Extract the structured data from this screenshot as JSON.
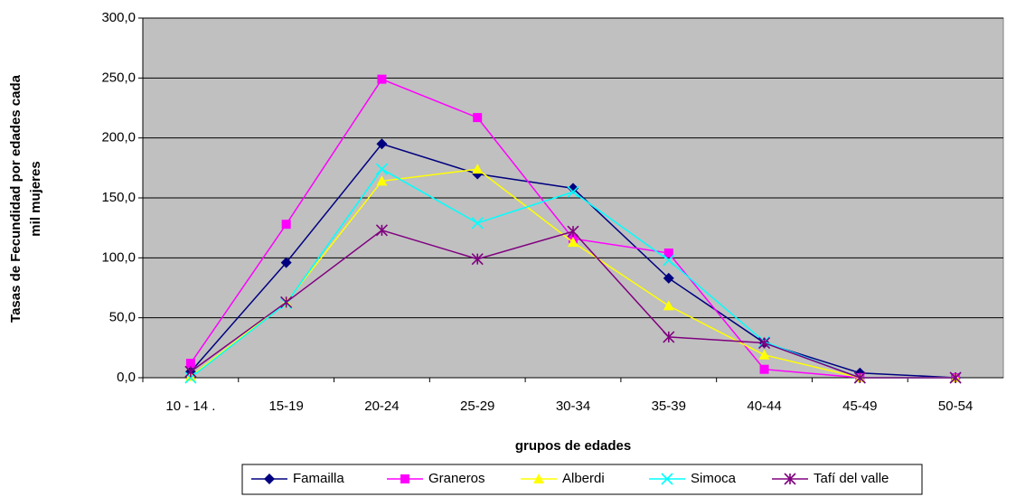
{
  "chart_data": {
    "type": "line",
    "ylabel": [
      "Tasas de Fecundidad por edades cada",
      "mil mujeres"
    ],
    "xlabel": "grupos de edades",
    "categories": [
      "10 - 14 .",
      "15-19",
      "20-24",
      "25-29",
      "30-34",
      "35-39",
      "40-44",
      "45-49",
      "50-54"
    ],
    "series": [
      {
        "name": "Famailla",
        "color": "#000080",
        "marker": "diamond",
        "values": [
          5,
          96,
          195,
          170,
          158,
          83,
          29,
          4,
          0
        ]
      },
      {
        "name": "Graneros",
        "color": "#ff00ff",
        "marker": "square",
        "values": [
          12,
          128,
          249,
          217,
          116,
          104,
          7,
          0,
          0
        ]
      },
      {
        "name": "Alberdi",
        "color": "#ffff00",
        "marker": "triangle",
        "values": [
          1,
          63,
          164,
          174,
          113,
          60,
          19,
          0,
          0
        ]
      },
      {
        "name": "Simoca",
        "color": "#00ffff",
        "marker": "x",
        "values": [
          0,
          62,
          174,
          129,
          155,
          98,
          30,
          0,
          0
        ]
      },
      {
        "name": "Tafí del valle",
        "color": "#800080",
        "marker": "star",
        "values": [
          5,
          63,
          123,
          99,
          122,
          34,
          29,
          0,
          0
        ]
      }
    ],
    "ylim": [
      0,
      300
    ],
    "yticks": [
      {
        "value": 0,
        "label": "0,0"
      },
      {
        "value": 50,
        "label": "50,0"
      },
      {
        "value": 100,
        "label": "100,0"
      },
      {
        "value": 150,
        "label": "150,0"
      },
      {
        "value": 200,
        "label": "200,0"
      },
      {
        "value": 250,
        "label": "250,0"
      },
      {
        "value": 300,
        "label": "300,0"
      }
    ],
    "grid": true,
    "plot_background": "#c0c0c0",
    "legend": "bottom"
  }
}
